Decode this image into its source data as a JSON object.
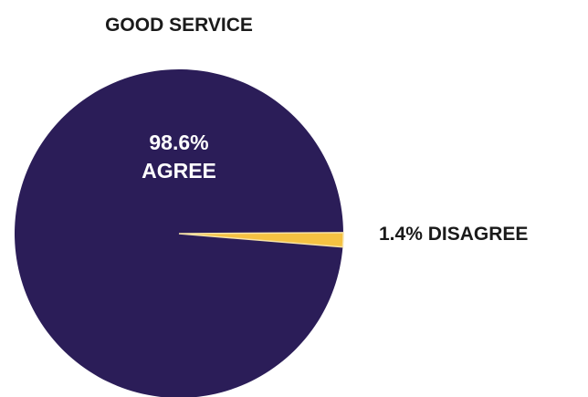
{
  "chart_data": {
    "type": "pie",
    "title": "GOOD SERVICE",
    "slices": [
      {
        "value": 98.6,
        "label_lines": [
          "98.6%",
          "AGREE"
        ],
        "color": "#2b1d58"
      },
      {
        "value": 1.4,
        "label_lines": [
          "1.4% DISAGREE"
        ],
        "color": "#f5c242"
      }
    ],
    "legend": "none"
  }
}
